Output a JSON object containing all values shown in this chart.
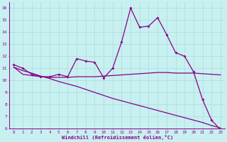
{
  "xlabel": "Windchill (Refroidissement éolien,°C)",
  "background_color": "#c8f0f0",
  "grid_color": "#b0dede",
  "line_color": "#880088",
  "xlim": [
    -0.5,
    23.5
  ],
  "ylim": [
    6,
    16.5
  ],
  "xticks": [
    0,
    1,
    2,
    3,
    4,
    5,
    6,
    7,
    8,
    9,
    10,
    11,
    12,
    13,
    14,
    15,
    16,
    17,
    18,
    19,
    20,
    21,
    22,
    23
  ],
  "yticks": [
    6,
    7,
    8,
    9,
    10,
    11,
    12,
    13,
    14,
    15,
    16
  ],
  "line1_x": [
    0,
    1,
    2,
    3,
    4,
    5,
    6,
    7,
    8,
    9,
    10,
    11,
    12,
    13,
    14,
    15,
    16,
    17,
    18,
    19,
    20,
    21,
    22,
    23
  ],
  "line1_y": [
    11.3,
    11.0,
    10.5,
    10.3,
    10.3,
    10.5,
    10.3,
    11.8,
    11.6,
    11.5,
    10.2,
    11.0,
    13.2,
    16.0,
    14.4,
    14.5,
    15.2,
    13.8,
    12.3,
    12.0,
    10.7,
    8.4,
    6.7,
    5.9
  ],
  "line2_x": [
    0,
    1,
    2,
    3,
    4,
    5,
    6,
    7,
    8,
    9,
    10,
    11,
    12,
    13,
    14,
    15,
    16,
    17,
    18,
    19,
    20,
    21,
    22,
    23
  ],
  "line2_y": [
    11.1,
    10.5,
    10.4,
    10.3,
    10.25,
    10.25,
    10.25,
    10.3,
    10.3,
    10.3,
    10.35,
    10.4,
    10.45,
    10.5,
    10.55,
    10.6,
    10.65,
    10.65,
    10.6,
    10.6,
    10.6,
    10.55,
    10.5,
    10.45
  ],
  "line3_x": [
    0,
    1,
    2,
    3,
    4,
    5,
    6,
    7,
    8,
    9,
    10,
    11,
    12,
    13,
    14,
    15,
    16,
    17,
    18,
    19,
    20,
    21,
    22,
    23
  ],
  "line3_y": [
    11.1,
    10.8,
    10.6,
    10.35,
    10.15,
    9.9,
    9.7,
    9.5,
    9.25,
    9.0,
    8.75,
    8.5,
    8.3,
    8.1,
    7.9,
    7.7,
    7.5,
    7.3,
    7.1,
    6.9,
    6.7,
    6.5,
    6.25,
    6.05
  ]
}
